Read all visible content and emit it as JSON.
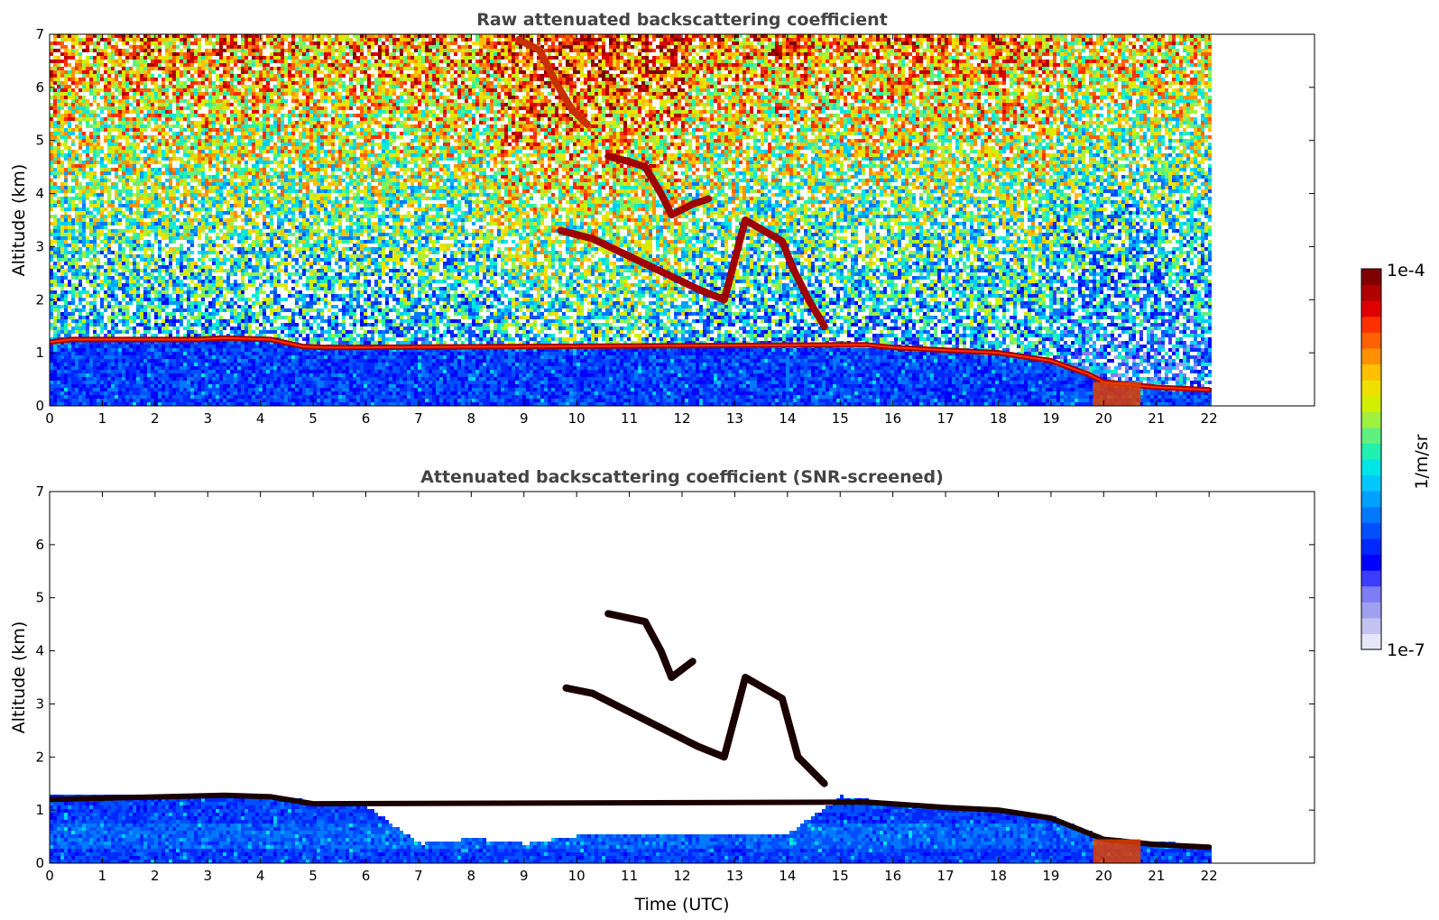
{
  "chart_data": [
    {
      "type": "heatmap",
      "title": "Raw attenuated backscattering coefficient",
      "xlabel": "",
      "ylabel": "Altitude (km)",
      "xlim": [
        0,
        24
      ],
      "ylim": [
        0,
        7
      ],
      "x_ticks": [
        "0",
        "1",
        "2",
        "3",
        "4",
        "5",
        "6",
        "7",
        "8",
        "9",
        "10",
        "11",
        "12",
        "13",
        "14",
        "15",
        "16",
        "17",
        "18",
        "19",
        "20",
        "21",
        "22"
      ],
      "y_ticks": [
        "0",
        "1",
        "2",
        "3",
        "4",
        "5",
        "6",
        "7"
      ],
      "data_extent_x": [
        0,
        22
      ],
      "noise_field": "high noise aloft (yellow-red), decreasing toward surface; dense low-value layer below ~1 km",
      "features": [
        {
          "name": "boundary layer top",
          "points": [
            [
              0,
              1.2
            ],
            [
              0.4,
              1.25
            ],
            [
              2.8,
              1.25
            ],
            [
              3.3,
              1.28
            ],
            [
              4.2,
              1.25
            ],
            [
              4.8,
              1.12
            ],
            [
              5.2,
              1.1
            ],
            [
              15.5,
              1.15
            ],
            [
              16,
              1.1
            ],
            [
              17,
              1.05
            ],
            [
              18,
              1.0
            ],
            [
              19,
              0.85
            ],
            [
              19.7,
              0.6
            ],
            [
              20,
              0.45
            ],
            [
              21,
              0.35
            ],
            [
              22,
              0.3
            ]
          ],
          "value": "1e-4"
        },
        {
          "name": "mid-level cloud",
          "points": [
            [
              10.6,
              4.7
            ],
            [
              11,
              4.6
            ],
            [
              11.3,
              4.5
            ],
            [
              11.6,
              4.0
            ],
            [
              11.8,
              3.6
            ],
            [
              12.2,
              3.8
            ],
            [
              12.5,
              3.9
            ]
          ],
          "value": "1e-4"
        },
        {
          "name": "cloud fragments",
          "points": [
            [
              9.7,
              3.3
            ],
            [
              10.3,
              3.15
            ],
            [
              12.3,
              2.2
            ],
            [
              12.8,
              2.0
            ],
            [
              13.2,
              3.5
            ],
            [
              13.9,
              3.1
            ],
            [
              14.1,
              2.6
            ],
            [
              14.4,
              2.0
            ],
            [
              14.7,
              1.5
            ]
          ],
          "value": "1e-4"
        },
        {
          "name": "high aerosol/cloud",
          "points": [
            [
              8.9,
              6.9
            ],
            [
              9.3,
              6.7
            ],
            [
              9.6,
              6.1
            ],
            [
              9.9,
              5.6
            ],
            [
              10.2,
              5.3
            ]
          ],
          "value": "6e-5"
        }
      ]
    },
    {
      "type": "heatmap",
      "title": "Attenuated backscattering coefficient (SNR-screened)",
      "xlabel": "Time (UTC)",
      "ylabel": "Altitude (km)",
      "xlim": [
        0,
        24
      ],
      "ylim": [
        0,
        7
      ],
      "x_ticks": [
        "0",
        "1",
        "2",
        "3",
        "4",
        "5",
        "6",
        "7",
        "8",
        "9",
        "10",
        "11",
        "12",
        "13",
        "14",
        "15",
        "16",
        "17",
        "18",
        "19",
        "20",
        "21",
        "22"
      ],
      "y_ticks": [
        "0",
        "1",
        "2",
        "3",
        "4",
        "5",
        "6",
        "7"
      ],
      "data_extent_x": [
        0,
        22
      ],
      "screened_top_km": [
        [
          0,
          1.3
        ],
        [
          2,
          1.35
        ],
        [
          4,
          1.3
        ],
        [
          5,
          1.2
        ],
        [
          6,
          1.1
        ],
        [
          7,
          0.4
        ],
        [
          8,
          0.5
        ],
        [
          9,
          0.4
        ],
        [
          10,
          0.55
        ],
        [
          11,
          0.55
        ],
        [
          12,
          0.6
        ],
        [
          14,
          0.6
        ],
        [
          15,
          1.3
        ],
        [
          16,
          1.15
        ],
        [
          17,
          1.1
        ],
        [
          18,
          1.05
        ],
        [
          19,
          0.9
        ],
        [
          20,
          0.5
        ],
        [
          21,
          0.42
        ],
        [
          22,
          0.38
        ]
      ],
      "features": [
        {
          "name": "boundary layer top",
          "points": [
            [
              0,
              1.2
            ],
            [
              3.3,
              1.28
            ],
            [
              4.2,
              1.25
            ],
            [
              5,
              1.12
            ],
            [
              15.5,
              1.15
            ],
            [
              17,
              1.05
            ],
            [
              18,
              1.0
            ],
            [
              19,
              0.85
            ],
            [
              20,
              0.45
            ],
            [
              21,
              0.35
            ],
            [
              22,
              0.3
            ]
          ],
          "value": "1e-4"
        },
        {
          "name": "mid-level cloud",
          "points": [
            [
              10.6,
              4.7
            ],
            [
              11.3,
              4.55
            ],
            [
              11.6,
              4.0
            ],
            [
              11.8,
              3.5
            ],
            [
              12.2,
              3.8
            ]
          ],
          "value": "1e-4"
        },
        {
          "name": "cloud fragments",
          "points": [
            [
              9.8,
              3.3
            ],
            [
              10.3,
              3.2
            ],
            [
              12.3,
              2.2
            ],
            [
              12.8,
              2.0
            ],
            [
              13.2,
              3.5
            ],
            [
              13.9,
              3.1
            ],
            [
              14.2,
              2.0
            ],
            [
              14.7,
              1.5
            ]
          ],
          "value": "1e-4"
        }
      ]
    }
  ],
  "colorbar": {
    "label": "1/m/sr",
    "min_label": "1e-7",
    "max_label": "1e-4",
    "colors": [
      "#e6e6f8",
      "#c3c3f0",
      "#a0a0f0",
      "#7d7df5",
      "#3c3cff",
      "#0000ff",
      "#0028ff",
      "#0050ff",
      "#0078ff",
      "#00a0ff",
      "#00c8ff",
      "#00e6e6",
      "#20f0b0",
      "#60f080",
      "#a0f040",
      "#d0f000",
      "#f0e000",
      "#ffc000",
      "#ff9000",
      "#ff6000",
      "#ff3000",
      "#e00000",
      "#b00000",
      "#800000"
    ]
  }
}
